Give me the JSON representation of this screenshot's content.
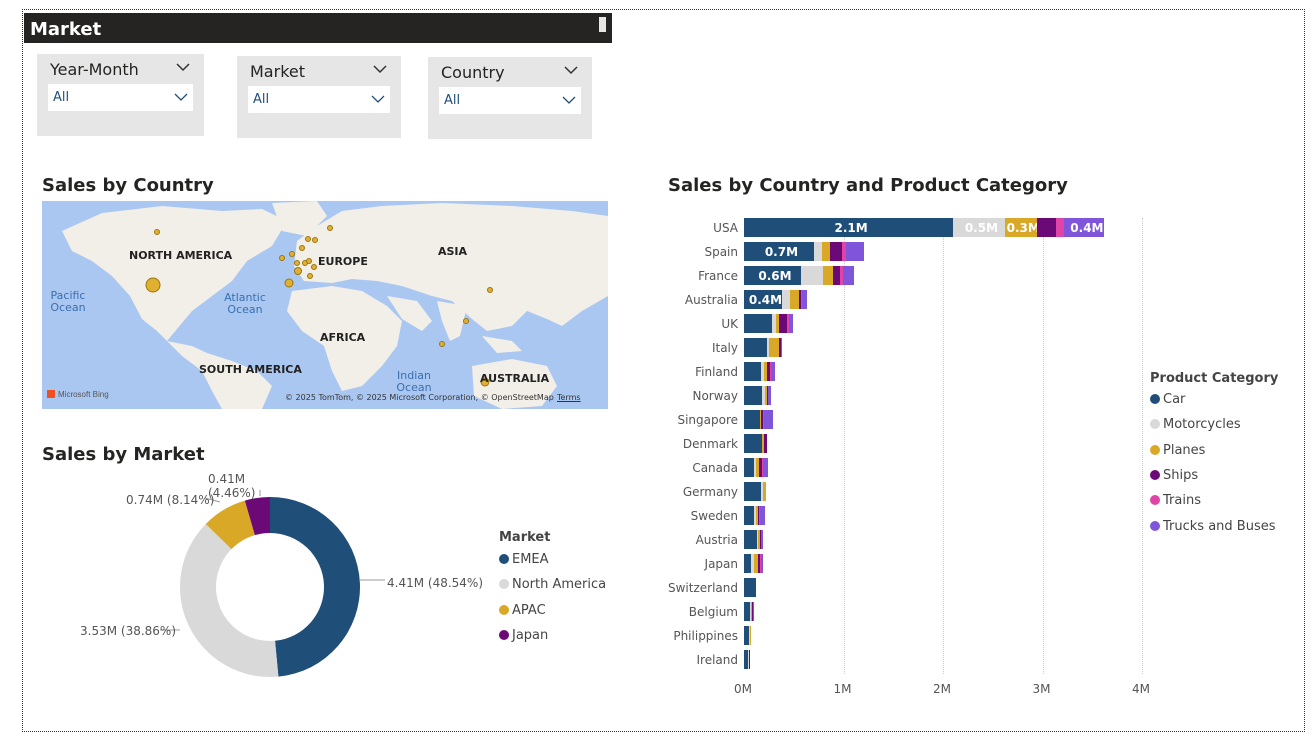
{
  "page_title": "Market",
  "slicers": [
    {
      "label": "Year-Month",
      "value": "All"
    },
    {
      "label": "Market",
      "value": "All"
    },
    {
      "label": "Country",
      "value": "All"
    }
  ],
  "map": {
    "title": "Sales by Country",
    "regions": [
      "NORTH AMERICA",
      "EUROPE",
      "ASIA",
      "AFRICA",
      "SOUTH AMERICA",
      "AUSTRALIA"
    ],
    "oceans": [
      "Pacific Ocean",
      "Atlantic Ocean",
      "Indian Ocean"
    ],
    "attribution": "© 2025 TomTom, © 2025 Microsoft Corporation, © OpenStreetMap",
    "terms": "Terms",
    "provider": "Microsoft Bing",
    "land_color": "#f2efe9",
    "water_color": "#aac7f2",
    "bubble_color": "#e0b030"
  },
  "donut": {
    "title": "Sales by Market",
    "legend_title": "Market",
    "slices": [
      {
        "name": "EMEA",
        "value": 4.41,
        "label": "4.41M (48.54%)",
        "color": "#1f4e79"
      },
      {
        "name": "North America",
        "value": 3.53,
        "label": "3.53M (38.86%)",
        "color": "#d9d9d9"
      },
      {
        "name": "APAC",
        "value": 0.74,
        "label": "0.74M (8.14%)",
        "color": "#d9a826"
      },
      {
        "name": "Japan",
        "value": 0.41,
        "label": "0.41M (4.46%)",
        "color": "#6b0a77"
      }
    ]
  },
  "chart_data": {
    "type": "bar",
    "orientation": "horizontal",
    "stacked": true,
    "title": "Sales by Country and Product Category",
    "legend_title": "Product Category",
    "categories": [
      "USA",
      "Spain",
      "France",
      "Australia",
      "UK",
      "Italy",
      "Finland",
      "Norway",
      "Singapore",
      "Denmark",
      "Canada",
      "Germany",
      "Sweden",
      "Austria",
      "Japan",
      "Switzerland",
      "Belgium",
      "Philippines",
      "Ireland"
    ],
    "xlim": [
      0,
      4
    ],
    "x_ticks": [
      "0M",
      "1M",
      "2M",
      "3M",
      "4M"
    ],
    "series": [
      {
        "name": "Car",
        "color": "#1f4e79",
        "values": [
          2.1,
          0.7,
          0.57,
          0.38,
          0.28,
          0.23,
          0.17,
          0.18,
          0.16,
          0.18,
          0.1,
          0.17,
          0.1,
          0.13,
          0.07,
          0.12,
          0.06,
          0.05,
          0.04
        ],
        "labels": [
          "2.1M",
          "0.7M",
          "0.6M",
          "0.4M",
          "",
          "",
          "",
          "",
          "",
          "",
          "",
          "",
          "",
          "",
          "",
          "",
          "",
          "",
          ""
        ]
      },
      {
        "name": "Motorcycles",
        "color": "#d9d9d9",
        "values": [
          0.52,
          0.08,
          0.22,
          0.08,
          0.04,
          0.02,
          0.03,
          0.03,
          0.0,
          0.0,
          0.02,
          0.02,
          0.02,
          0.01,
          0.03,
          0.0,
          0.01,
          0.01,
          0.01
        ],
        "labels": [
          "0.5M",
          "",
          "",
          "",
          "",
          "",
          "",
          "",
          "",
          "",
          "",
          "",
          "",
          "",
          "",
          "",
          "",
          "",
          ""
        ]
      },
      {
        "name": "Planes",
        "color": "#d9a826",
        "values": [
          0.32,
          0.08,
          0.1,
          0.09,
          0.03,
          0.1,
          0.03,
          0.02,
          0.01,
          0.02,
          0.03,
          0.03,
          0.02,
          0.02,
          0.04,
          0.0,
          0.01,
          0.01,
          0.0
        ],
        "labels": [
          "0.3M",
          "",
          "",
          "",
          "",
          "",
          "",
          "",
          "",
          "",
          "",
          "",
          "",
          "",
          "",
          "",
          "",
          "",
          ""
        ]
      },
      {
        "name": "Ships",
        "color": "#6b0a77",
        "values": [
          0.2,
          0.12,
          0.07,
          0.02,
          0.08,
          0.02,
          0.03,
          0.01,
          0.02,
          0.03,
          0.03,
          0.0,
          0.01,
          0.01,
          0.02,
          0.0,
          0.01,
          0.0,
          0.01
        ],
        "labels": [
          "",
          "",
          "",
          "",
          "",
          "",
          "",
          "",
          "",
          "",
          "",
          "",
          "",
          "",
          "",
          "",
          "",
          "",
          ""
        ]
      },
      {
        "name": "Trains",
        "color": "#e044a7",
        "values": [
          0.08,
          0.05,
          0.03,
          0.01,
          0.02,
          0.0,
          0.01,
          0.0,
          0.01,
          0.0,
          0.01,
          0.0,
          0.01,
          0.0,
          0.01,
          0.0,
          0.0,
          0.0,
          0.0
        ],
        "labels": [
          "",
          "",
          "",
          "",
          "",
          "",
          "",
          "",
          "",
          "",
          "",
          "",
          "",
          "",
          "",
          "",
          "",
          "",
          ""
        ]
      },
      {
        "name": "Trucks and Buses",
        "color": "#7f56d9",
        "values": [
          0.4,
          0.18,
          0.12,
          0.05,
          0.04,
          0.01,
          0.04,
          0.03,
          0.09,
          0.0,
          0.05,
          0.0,
          0.05,
          0.02,
          0.02,
          0.0,
          0.01,
          0.0,
          0.0
        ],
        "labels": [
          "0.4M",
          "",
          "",
          "",
          "",
          "",
          "",
          "",
          "",
          "",
          "",
          "",
          "",
          "",
          "",
          "",
          "",
          "",
          ""
        ]
      }
    ]
  }
}
